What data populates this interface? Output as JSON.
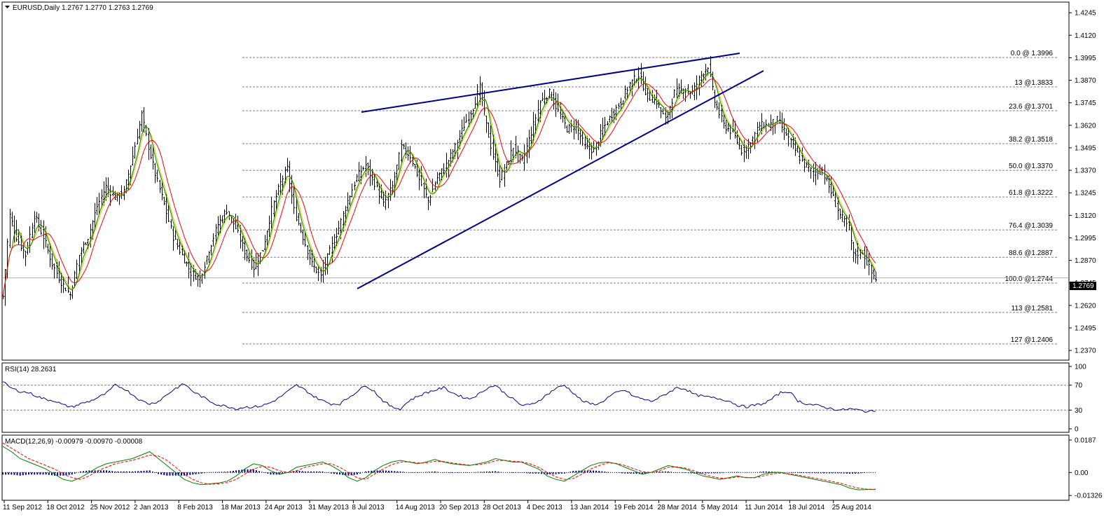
{
  "colors": {
    "background": "#ffffff",
    "frame": "#000000",
    "bars": "#000000",
    "ma_fast": "#008000",
    "ma_slow": "#ff0000",
    "ma_mid": "#e6c800",
    "trendline": "#00008b",
    "fib_lines": "#808080",
    "rsi_line": "#00008b",
    "macd_hist": "#00008b",
    "macd_main": "#008000",
    "macd_signal": "#ff0000",
    "price_tag_bg": "#000000",
    "price_tag_fg": "#ffffff"
  },
  "chart_data": [
    {
      "type": "ohlc",
      "panel": "price",
      "title": "EURUSD,Daily  1.2767 1.2770 1.2763 1.2769",
      "y_ticks": [
        "1.4245",
        "1.4120",
        "1.3995",
        "1.3870",
        "1.3745",
        "1.3620",
        "1.3495",
        "1.3370",
        "1.3245",
        "1.3120",
        "1.2995",
        "1.2870",
        "1.2745",
        "1.2620",
        "1.2495",
        "1.2370"
      ],
      "ylim": [
        1.232,
        1.43
      ],
      "last_price": "1.2769",
      "x_ticks": [
        "11 Sep 2012",
        "18 Oct 2012",
        "25 Nov 2012",
        "2 Jan 2013",
        "8 Feb 2013",
        "18 Mar 2013",
        "24 Apr 2013",
        "31 May 2013",
        "8 Jul 2013",
        "14 Aug 2013",
        "20 Sep 2013",
        "28 Oct 2013",
        "4 Dec 2013",
        "13 Jan 2014",
        "19 Feb 2014",
        "28 Mar 2014",
        "5 May 2014",
        "11 Jun 2014",
        "18 Jul 2014",
        "25 Aug 2014"
      ],
      "fibonacci": [
        {
          "label": "0.0 @ 1.3996",
          "price": 1.3996
        },
        {
          "label": "13 @1.3833",
          "price": 1.3833
        },
        {
          "label": "23.6 @1.3701",
          "price": 1.3701
        },
        {
          "label": "38.2 @1.3518",
          "price": 1.3518
        },
        {
          "label": "50.0 @1.3370",
          "price": 1.337
        },
        {
          "label": "61.8 @1.3222",
          "price": 1.3222
        },
        {
          "label": "76.4 @1.3039",
          "price": 1.3039
        },
        {
          "label": "88.6 @1.2887",
          "price": 1.2887
        },
        {
          "label": "100.0 @1.2744",
          "price": 1.2744
        },
        {
          "label": "113 @1.2581",
          "price": 1.2581
        },
        {
          "label": "127 @1.2406",
          "price": 1.2406
        }
      ],
      "price_path": [
        [
          0,
          1.267
        ],
        [
          3,
          1.312
        ],
        [
          6,
          1.3
        ],
        [
          10,
          1.29
        ],
        [
          14,
          1.312
        ],
        [
          18,
          1.3
        ],
        [
          22,
          1.285
        ],
        [
          26,
          1.275
        ],
        [
          30,
          1.268
        ],
        [
          34,
          1.29
        ],
        [
          38,
          1.3
        ],
        [
          42,
          1.317
        ],
        [
          46,
          1.328
        ],
        [
          50,
          1.322
        ],
        [
          54,
          1.325
        ],
        [
          58,
          1.345
        ],
        [
          62,
          1.368
        ],
        [
          65,
          1.35
        ],
        [
          68,
          1.335
        ],
        [
          72,
          1.318
        ],
        [
          76,
          1.3
        ],
        [
          80,
          1.29
        ],
        [
          84,
          1.28
        ],
        [
          88,
          1.277
        ],
        [
          92,
          1.293
        ],
        [
          96,
          1.307
        ],
        [
          100,
          1.315
        ],
        [
          104,
          1.305
        ],
        [
          108,
          1.292
        ],
        [
          112,
          1.283
        ],
        [
          116,
          1.293
        ],
        [
          120,
          1.315
        ],
        [
          124,
          1.33
        ],
        [
          127,
          1.338
        ],
        [
          130,
          1.315
        ],
        [
          134,
          1.3
        ],
        [
          138,
          1.285
        ],
        [
          142,
          1.278
        ],
        [
          146,
          1.292
        ],
        [
          150,
          1.305
        ],
        [
          154,
          1.32
        ],
        [
          158,
          1.333
        ],
        [
          162,
          1.34
        ],
        [
          166,
          1.33
        ],
        [
          170,
          1.318
        ],
        [
          174,
          1.328
        ],
        [
          178,
          1.35
        ],
        [
          182,
          1.345
        ],
        [
          186,
          1.332
        ],
        [
          190,
          1.32
        ],
        [
          194,
          1.333
        ],
        [
          198,
          1.34
        ],
        [
          202,
          1.35
        ],
        [
          206,
          1.362
        ],
        [
          210,
          1.372
        ],
        [
          213,
          1.383
        ],
        [
          216,
          1.362
        ],
        [
          219,
          1.345
        ],
        [
          222,
          1.332
        ],
        [
          225,
          1.34
        ],
        [
          228,
          1.35
        ],
        [
          232,
          1.342
        ],
        [
          236,
          1.358
        ],
        [
          240,
          1.375
        ],
        [
          244,
          1.38
        ],
        [
          248,
          1.37
        ],
        [
          252,
          1.36
        ],
        [
          256,
          1.362
        ],
        [
          260,
          1.35
        ],
        [
          264,
          1.348
        ],
        [
          268,
          1.36
        ],
        [
          272,
          1.368
        ],
        [
          276,
          1.375
        ],
        [
          280,
          1.385
        ],
        [
          284,
          1.39
        ],
        [
          288,
          1.378
        ],
        [
          292,
          1.375
        ],
        [
          296,
          1.365
        ],
        [
          300,
          1.38
        ],
        [
          304,
          1.382
        ],
        [
          308,
          1.38
        ],
        [
          312,
          1.39
        ],
        [
          315,
          1.395
        ],
        [
          318,
          1.375
        ],
        [
          322,
          1.362
        ],
        [
          326,
          1.358
        ],
        [
          330,
          1.348
        ],
        [
          334,
          1.352
        ],
        [
          338,
          1.362
        ],
        [
          342,
          1.362
        ],
        [
          346,
          1.365
        ],
        [
          350,
          1.357
        ],
        [
          354,
          1.348
        ],
        [
          358,
          1.34
        ],
        [
          362,
          1.336
        ],
        [
          366,
          1.337
        ],
        [
          370,
          1.325
        ],
        [
          374,
          1.312
        ],
        [
          378,
          1.305
        ],
        [
          380,
          1.29
        ],
        [
          384,
          1.292
        ],
        [
          388,
          1.28
        ],
        [
          390,
          1.2769
        ]
      ]
    },
    {
      "type": "line",
      "panel": "rsi",
      "title": "RSI(14) 28.2631",
      "y_ticks": [
        "100",
        "70",
        "30",
        "0"
      ],
      "levels": [
        70,
        30
      ],
      "ylim": [
        0,
        100
      ],
      "series": [
        {
          "values": [
            75,
            65,
            60,
            58,
            52,
            47,
            45,
            38,
            35,
            40,
            44,
            50,
            57,
            70,
            65,
            55,
            45,
            40,
            44,
            55,
            65,
            72,
            60,
            52,
            44,
            38,
            36,
            32,
            35,
            35,
            37,
            42,
            50,
            60,
            70,
            62,
            52,
            45,
            40,
            40,
            50,
            60,
            70,
            60,
            45,
            35,
            32,
            45,
            52,
            58,
            62,
            66,
            58,
            52,
            48,
            55,
            65,
            70,
            58,
            48,
            38,
            38,
            45,
            55,
            65,
            70,
            58,
            45,
            40,
            40,
            50,
            58,
            62,
            52,
            48,
            44,
            50,
            58,
            66,
            64,
            55,
            52,
            50,
            48,
            45,
            38,
            35,
            38,
            40,
            48,
            58,
            60,
            45,
            40,
            38,
            35,
            32,
            30,
            32,
            30,
            28,
            28
          ]
        }
      ]
    },
    {
      "type": "macd",
      "panel": "macd",
      "title": "MACD(12,26,9) -0.00979 -0.00970 -0.00008",
      "y_ticks": [
        "0.0187",
        "0.00",
        "-0.01326"
      ],
      "ylim": [
        -0.014,
        0.0195
      ],
      "series": [
        {
          "name": "main",
          "values": [
            0.015,
            0.012,
            0.008,
            0.006,
            0.004,
            0.002,
            -0.001,
            -0.004,
            -0.005,
            -0.003,
            0.0,
            0.003,
            0.005,
            0.006,
            0.007,
            0.008,
            0.01,
            0.012,
            0.008,
            0.004,
            0.0,
            -0.004,
            -0.006,
            -0.007,
            -0.0065,
            -0.006,
            -0.005,
            -0.002,
            0.002,
            0.005,
            0.004,
            0.001,
            -0.001,
            0.0,
            0.003,
            0.004,
            0.005,
            0.006,
            0.004,
            0.001,
            -0.003,
            -0.005,
            -0.003,
            0.001,
            0.004,
            0.006,
            0.007,
            0.006,
            0.005,
            0.006,
            0.0075,
            0.006,
            0.005,
            0.0045,
            0.004,
            0.005,
            0.006,
            0.008,
            0.007,
            0.006,
            0.006,
            0.004,
            0.002,
            -0.002,
            -0.004,
            -0.005,
            -0.002,
            0.001,
            0.004,
            0.0055,
            0.006,
            0.005,
            0.003,
            0.001,
            -0.001,
            0.0,
            0.002,
            0.004,
            0.003,
            0.002,
            0.0,
            -0.002,
            -0.003,
            -0.004,
            -0.003,
            -0.002,
            -0.003,
            -0.003,
            -0.001,
            0.0,
            0.0,
            -0.001,
            -0.002,
            -0.003,
            -0.004,
            -0.005,
            -0.006,
            -0.007,
            -0.009,
            -0.01,
            -0.0098,
            -0.0098
          ]
        },
        {
          "name": "signal",
          "values": [
            0.017,
            0.014,
            0.011,
            0.008,
            0.006,
            0.004,
            0.002,
            -0.001,
            -0.003,
            -0.004,
            -0.002,
            0.001,
            0.003,
            0.005,
            0.006,
            0.007,
            0.0085,
            0.01,
            0.0095,
            0.007,
            0.003,
            -0.001,
            -0.004,
            -0.006,
            -0.0068,
            -0.0065,
            -0.0058,
            -0.004,
            -0.001,
            0.002,
            0.0035,
            0.003,
            0.001,
            0.0,
            0.001,
            0.003,
            0.004,
            0.005,
            0.005,
            0.003,
            0.0,
            -0.003,
            -0.004,
            -0.001,
            0.002,
            0.0045,
            0.006,
            0.0062,
            0.0055,
            0.0055,
            0.0065,
            0.0063,
            0.0055,
            0.0048,
            0.0042,
            0.0045,
            0.0052,
            0.0068,
            0.007,
            0.0065,
            0.0062,
            0.005,
            0.003,
            0.0,
            -0.0025,
            -0.004,
            -0.0035,
            -0.001,
            0.002,
            0.004,
            0.0055,
            0.0052,
            0.004,
            0.0022,
            0.0005,
            0.0,
            0.001,
            0.003,
            0.0032,
            0.0025,
            0.001,
            -0.001,
            -0.0022,
            -0.0033,
            -0.0033,
            -0.0025,
            -0.0028,
            -0.003,
            -0.002,
            -0.0008,
            -0.0003,
            -0.0008,
            -0.0015,
            -0.0024,
            -0.0033,
            -0.0042,
            -0.0052,
            -0.0062,
            -0.0078,
            -0.009,
            -0.0096,
            -0.0097
          ]
        }
      ]
    }
  ]
}
